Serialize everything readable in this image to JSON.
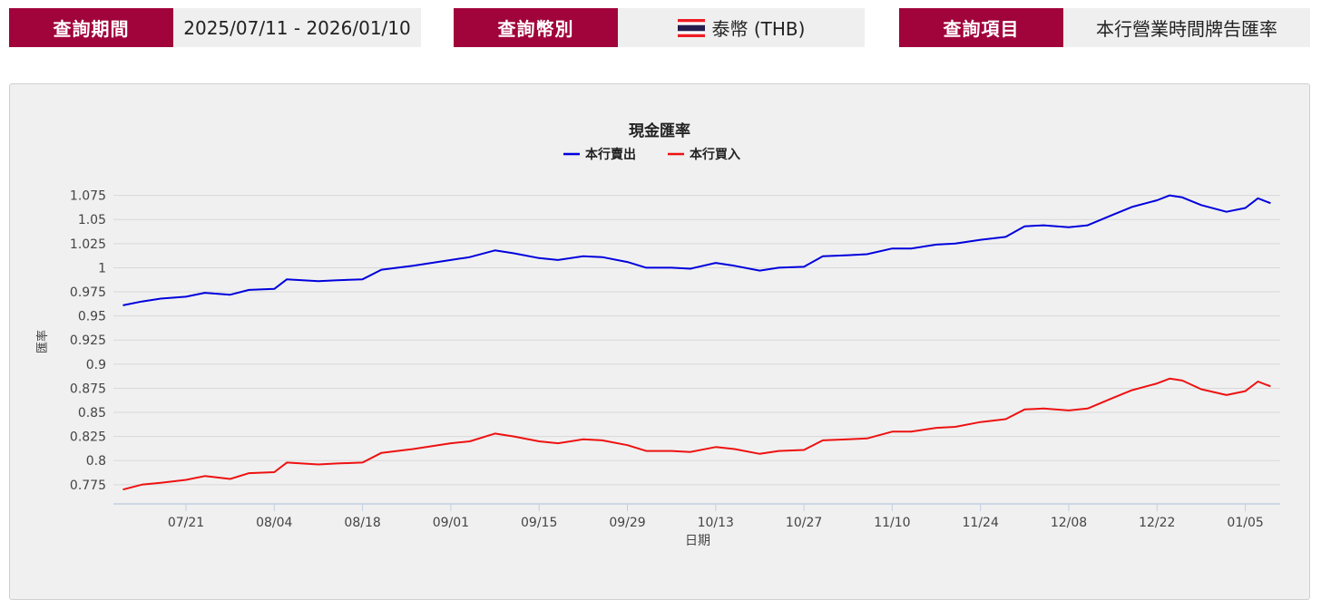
{
  "filters": {
    "period": {
      "label": "查詢期間",
      "value": "2025/07/11 - 2026/01/10"
    },
    "currency": {
      "label": "查詢幣別",
      "value": "泰幣 (THB)",
      "flag_icon": "thailand-flag-icon"
    },
    "item": {
      "label": "查詢項目",
      "value": "本行營業時間牌告匯率"
    }
  },
  "colors": {
    "accent": "#a0043a",
    "sell": "#0000dd",
    "buy": "#ee1111"
  },
  "chart_data": {
    "type": "line",
    "title": "現金匯率",
    "xlabel": "日期",
    "ylabel": "匯率",
    "ylim": [
      0.755,
      1.085
    ],
    "yticks": [
      "0.775",
      "0.8",
      "0.825",
      "0.85",
      "0.875",
      "0.9",
      "0.925",
      "0.95",
      "0.975",
      "1",
      "1.025",
      "1.05",
      "1.075"
    ],
    "xticks": [
      "07/21",
      "08/04",
      "08/18",
      "09/01",
      "09/15",
      "09/29",
      "10/13",
      "10/27",
      "11/10",
      "11/24",
      "12/08",
      "12/22",
      "01/05"
    ],
    "xlim": [
      "2025-07-11",
      "2026-01-10"
    ],
    "legend": "top-center",
    "grid": true,
    "dates": [
      "2025-07-11",
      "2025-07-14",
      "2025-07-17",
      "2025-07-21",
      "2025-07-24",
      "2025-07-28",
      "2025-07-31",
      "2025-08-04",
      "2025-08-06",
      "2025-08-11",
      "2025-08-14",
      "2025-08-18",
      "2025-08-21",
      "2025-08-26",
      "2025-09-01",
      "2025-09-04",
      "2025-09-08",
      "2025-09-11",
      "2025-09-15",
      "2025-09-18",
      "2025-09-22",
      "2025-09-25",
      "2025-09-29",
      "2025-10-02",
      "2025-10-06",
      "2025-10-09",
      "2025-10-13",
      "2025-10-16",
      "2025-10-20",
      "2025-10-23",
      "2025-10-27",
      "2025-10-30",
      "2025-11-03",
      "2025-11-06",
      "2025-11-10",
      "2025-11-13",
      "2025-11-17",
      "2025-11-20",
      "2025-11-24",
      "2025-11-28",
      "2025-12-01",
      "2025-12-04",
      "2025-12-08",
      "2025-12-11",
      "2025-12-15",
      "2025-12-18",
      "2025-12-22",
      "2025-12-24",
      "2025-12-26",
      "2025-12-29",
      "2026-01-02",
      "2026-01-05",
      "2026-01-07",
      "2026-01-09"
    ],
    "series": [
      {
        "name": "本行賣出",
        "values": [
          0.961,
          0.965,
          0.968,
          0.97,
          0.974,
          0.972,
          0.977,
          0.978,
          0.988,
          0.986,
          0.987,
          0.988,
          0.998,
          1.002,
          1.008,
          1.011,
          1.018,
          1.015,
          1.01,
          1.008,
          1.012,
          1.011,
          1.006,
          1.0,
          1.0,
          0.999,
          1.005,
          1.002,
          0.997,
          1.0,
          1.001,
          1.012,
          1.013,
          1.014,
          1.02,
          1.02,
          1.024,
          1.025,
          1.029,
          1.032,
          1.043,
          1.044,
          1.042,
          1.044,
          1.055,
          1.063,
          1.07,
          1.075,
          1.073,
          1.065,
          1.058,
          1.062,
          1.072,
          1.067
        ]
      },
      {
        "name": "本行買入",
        "values": [
          0.77,
          0.775,
          0.777,
          0.78,
          0.784,
          0.781,
          0.787,
          0.788,
          0.798,
          0.796,
          0.797,
          0.798,
          0.808,
          0.812,
          0.818,
          0.82,
          0.828,
          0.825,
          0.82,
          0.818,
          0.822,
          0.821,
          0.816,
          0.81,
          0.81,
          0.809,
          0.814,
          0.812,
          0.807,
          0.81,
          0.811,
          0.821,
          0.822,
          0.823,
          0.83,
          0.83,
          0.834,
          0.835,
          0.84,
          0.843,
          0.853,
          0.854,
          0.852,
          0.854,
          0.865,
          0.873,
          0.88,
          0.885,
          0.883,
          0.874,
          0.868,
          0.872,
          0.882,
          0.877
        ]
      }
    ]
  }
}
